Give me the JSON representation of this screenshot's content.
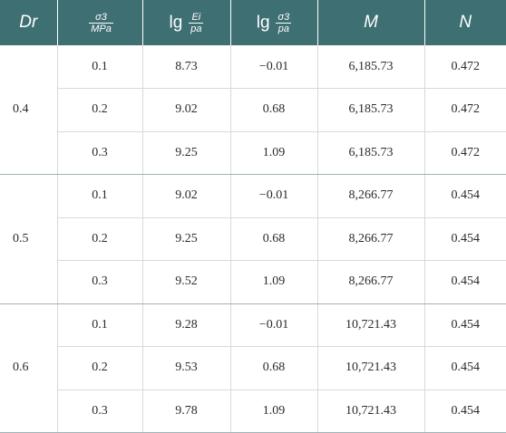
{
  "table": {
    "headers": {
      "dr": "Dr",
      "sigma_num": "σ3",
      "sigma_den": "MPa",
      "lg": "lg",
      "ei_num": "Ei",
      "ei_den": "pa",
      "sig_num2": "σ3",
      "sig_den2": "pa",
      "m": "M",
      "n": "N"
    },
    "groups": [
      {
        "dr": "0.4",
        "rows": [
          {
            "sigma": "0.1",
            "lg_e": "8.73",
            "lg_s": "−0.01",
            "m": "6,185.73",
            "n": "0.472"
          },
          {
            "sigma": "0.2",
            "lg_e": "9.02",
            "lg_s": "0.68",
            "m": "6,185.73",
            "n": "0.472"
          },
          {
            "sigma": "0.3",
            "lg_e": "9.25",
            "lg_s": "1.09",
            "m": "6,185.73",
            "n": "0.472"
          }
        ]
      },
      {
        "dr": "0.5",
        "rows": [
          {
            "sigma": "0.1",
            "lg_e": "9.02",
            "lg_s": "−0.01",
            "m": "8,266.77",
            "n": "0.454"
          },
          {
            "sigma": "0.2",
            "lg_e": "9.25",
            "lg_s": "0.68",
            "m": "8,266.77",
            "n": "0.454"
          },
          {
            "sigma": "0.3",
            "lg_e": "9.52",
            "lg_s": "1.09",
            "m": "8,266.77",
            "n": "0.454"
          }
        ]
      },
      {
        "dr": "0.6",
        "rows": [
          {
            "sigma": "0.1",
            "lg_e": "9.28",
            "lg_s": "−0.01",
            "m": "10,721.43",
            "n": "0.454"
          },
          {
            "sigma": "0.2",
            "lg_e": "9.53",
            "lg_s": "0.68",
            "m": "10,721.43",
            "n": "0.454"
          },
          {
            "sigma": "0.3",
            "lg_e": "9.78",
            "lg_s": "1.09",
            "m": "10,721.43",
            "n": "0.454"
          }
        ]
      }
    ],
    "colors": {
      "header_bg": "#3e6f73",
      "header_text": "#ffffff",
      "grid": "#d9d9d9"
    }
  }
}
